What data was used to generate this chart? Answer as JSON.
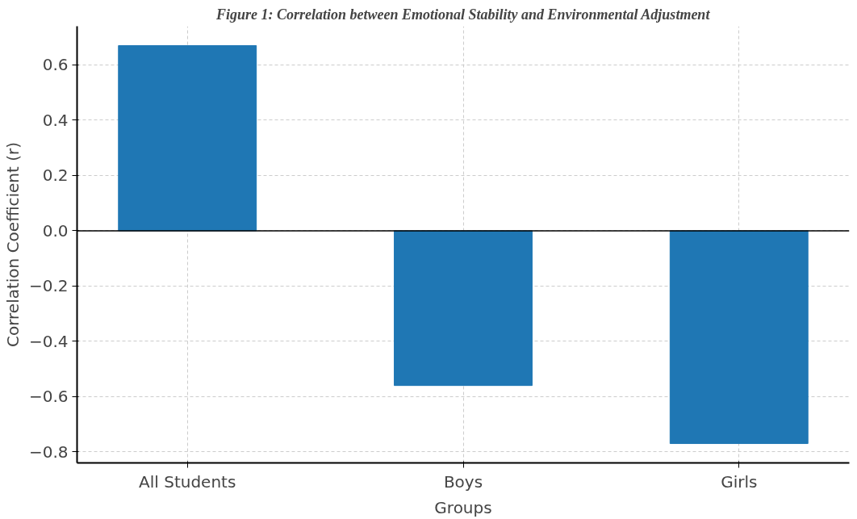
{
  "chart_data": {
    "type": "bar",
    "title": "Figure 1: Correlation between Emotional Stability and Environmental Adjustment",
    "xlabel": "Groups",
    "ylabel": "Correlation Coefficient (r)",
    "categories": [
      "All Students",
      "Boys",
      "Girls"
    ],
    "values": [
      0.67,
      -0.56,
      -0.77
    ],
    "color": "#1f77b4",
    "ylim": [
      -0.84,
      0.74
    ],
    "yticks": [
      {
        "value": -0.8,
        "label": "−0.8"
      },
      {
        "value": -0.6,
        "label": "−0.6"
      },
      {
        "value": -0.4,
        "label": "−0.4"
      },
      {
        "value": -0.2,
        "label": "−0.2"
      },
      {
        "value": 0.0,
        "label": "0.0"
      },
      {
        "value": 0.2,
        "label": "0.2"
      },
      {
        "value": 0.4,
        "label": "0.4"
      },
      {
        "value": 0.6,
        "label": "0.6"
      }
    ],
    "ref_lines": [
      {
        "axis": "y",
        "value": 0,
        "color": "#000000"
      }
    ],
    "grid": true
  }
}
